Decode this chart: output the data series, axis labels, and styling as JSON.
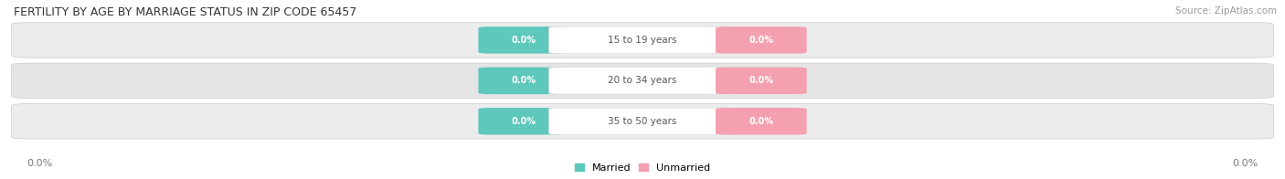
{
  "title": "FERTILITY BY AGE BY MARRIAGE STATUS IN ZIP CODE 65457",
  "source": "Source: ZipAtlas.com",
  "categories": [
    "15 to 19 years",
    "20 to 34 years",
    "35 to 50 years"
  ],
  "married_values": [
    0.0,
    0.0,
    0.0
  ],
  "unmarried_values": [
    0.0,
    0.0,
    0.0
  ],
  "married_color": "#5EC8BC",
  "unmarried_color": "#F4A0B0",
  "bar_bg_color_odd": "#ECECEC",
  "bar_bg_color_even": "#E5E5E5",
  "figsize": [
    14.06,
    1.96
  ],
  "dpi": 100,
  "bg_color": "#FFFFFF",
  "axis_label_left": "0.0%",
  "axis_label_right": "0.0%"
}
